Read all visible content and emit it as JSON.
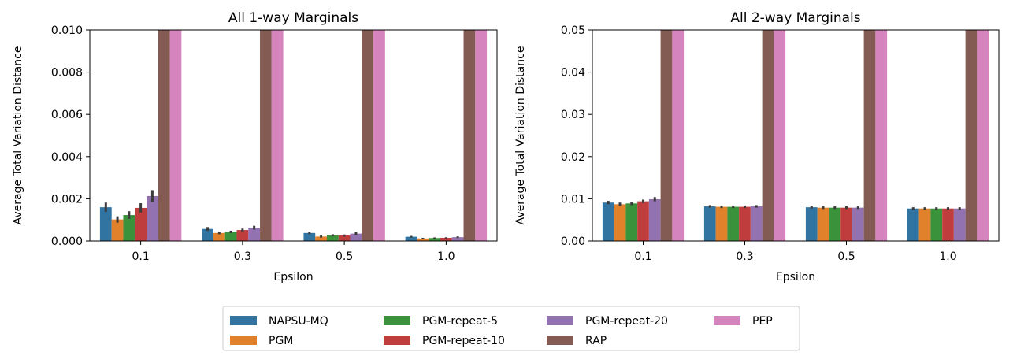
{
  "chart_data": [
    {
      "type": "bar",
      "title": "All 1-way Marginals",
      "xlabel": "Epsilon",
      "ylabel": "Average Total Variation Distance",
      "categories": [
        "0.1",
        "0.3",
        "0.5",
        "1.0"
      ],
      "ylim": [
        0,
        0.01
      ],
      "yticks": [
        "0.000",
        "0.002",
        "0.004",
        "0.006",
        "0.008",
        "0.010"
      ],
      "series": [
        {
          "name": "NAPSU-MQ",
          "color": "#3274a1",
          "values": [
            0.0016,
            0.00057,
            0.00038,
            0.0002
          ],
          "err": [
            0.00022,
            9e-05,
            5e-05,
            4e-05
          ]
        },
        {
          "name": "PGM",
          "color": "#e1812c",
          "values": [
            0.00102,
            0.00038,
            0.00021,
            0.00012
          ],
          "err": [
            0.00015,
            6e-05,
            5e-05,
            3e-05
          ]
        },
        {
          "name": "PGM-repeat-5",
          "color": "#3a923a",
          "values": [
            0.00123,
            0.00043,
            0.00027,
            0.00014
          ],
          "err": [
            0.00018,
            6e-05,
            5e-05,
            3e-05
          ]
        },
        {
          "name": "PGM-repeat-10",
          "color": "#c03d3e",
          "values": [
            0.00157,
            0.00052,
            0.00026,
            0.00015
          ],
          "err": [
            0.00022,
            7e-05,
            5e-05,
            3e-05
          ]
        },
        {
          "name": "PGM-repeat-20",
          "color": "#9372b2",
          "values": [
            0.00213,
            0.00063,
            0.00035,
            0.00018
          ],
          "err": [
            0.00028,
            9e-05,
            6e-05,
            4e-05
          ]
        },
        {
          "name": "RAP",
          "color": "#845b53",
          "values": [
            0.0102,
            0.0102,
            0.0102,
            0.0102
          ],
          "err": [
            0,
            0,
            0,
            0
          ]
        },
        {
          "name": "PEP",
          "color": "#d684bd",
          "values": [
            0.0102,
            0.0102,
            0.0102,
            0.0102
          ],
          "err": [
            0,
            0,
            0,
            0
          ]
        }
      ]
    },
    {
      "type": "bar",
      "title": "All 2-way Marginals",
      "xlabel": "Epsilon",
      "ylabel": "Average Total Variation Distance",
      "categories": [
        "0.1",
        "0.3",
        "0.5",
        "1.0"
      ],
      "ylim": [
        0,
        0.05
      ],
      "yticks": [
        "0.00",
        "0.01",
        "0.02",
        "0.03",
        "0.04",
        "0.05"
      ],
      "series": [
        {
          "name": "NAPSU-MQ",
          "color": "#3274a1",
          "values": [
            0.0091,
            0.0082,
            0.008,
            0.0077
          ],
          "err": [
            0.0004,
            0.0003,
            0.0003,
            0.0003
          ]
        },
        {
          "name": "PGM",
          "color": "#e1812c",
          "values": [
            0.0087,
            0.0081,
            0.0079,
            0.0077
          ],
          "err": [
            0.0004,
            0.0003,
            0.0003,
            0.0003
          ]
        },
        {
          "name": "PGM-repeat-5",
          "color": "#3a923a",
          "values": [
            0.0089,
            0.0081,
            0.0079,
            0.0077
          ],
          "err": [
            0.0004,
            0.0003,
            0.0003,
            0.0003
          ]
        },
        {
          "name": "PGM-repeat-10",
          "color": "#c03d3e",
          "values": [
            0.0094,
            0.0081,
            0.0079,
            0.0077
          ],
          "err": [
            0.0004,
            0.0003,
            0.0003,
            0.0003
          ]
        },
        {
          "name": "PGM-repeat-20",
          "color": "#9372b2",
          "values": [
            0.0099,
            0.0082,
            0.0079,
            0.0077
          ],
          "err": [
            0.0005,
            0.0003,
            0.0003,
            0.0003
          ]
        },
        {
          "name": "RAP",
          "color": "#845b53",
          "values": [
            0.051,
            0.051,
            0.051,
            0.051
          ],
          "err": [
            0,
            0,
            0,
            0
          ]
        },
        {
          "name": "PEP",
          "color": "#d684bd",
          "values": [
            0.051,
            0.051,
            0.051,
            0.051
          ],
          "err": [
            0,
            0,
            0,
            0
          ]
        }
      ]
    }
  ],
  "legend": {
    "entries": [
      {
        "label": "NAPSU-MQ",
        "color": "#3274a1"
      },
      {
        "label": "PGM",
        "color": "#e1812c"
      },
      {
        "label": "PGM-repeat-5",
        "color": "#3a923a"
      },
      {
        "label": "PGM-repeat-10",
        "color": "#c03d3e"
      },
      {
        "label": "PGM-repeat-20",
        "color": "#9372b2"
      },
      {
        "label": "RAP",
        "color": "#845b53"
      },
      {
        "label": "PEP",
        "color": "#d684bd"
      }
    ],
    "placement": "bottom-center"
  }
}
